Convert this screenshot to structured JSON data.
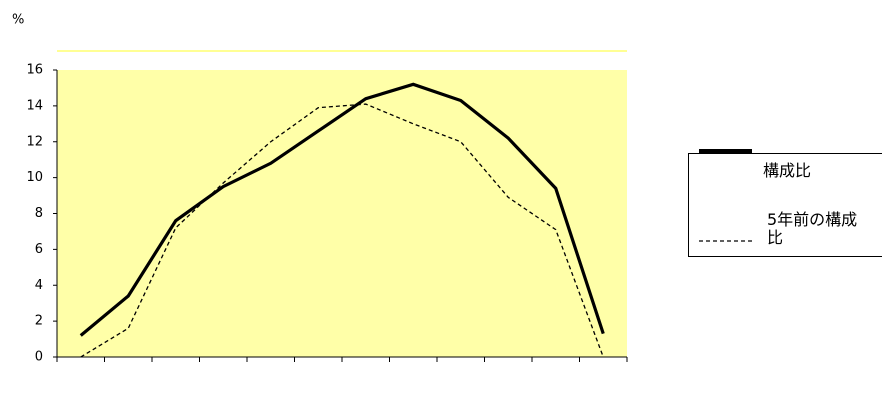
{
  "chart_data": {
    "type": "line",
    "y_unit": "%",
    "categories": [
      null,
      null,
      null,
      null,
      null,
      null,
      null,
      null,
      null,
      null,
      null,
      null
    ],
    "series": [
      {
        "name": "構成比",
        "color": "#000000",
        "dash": false,
        "values": [
          1.2,
          3.4,
          7.6,
          9.5,
          10.8,
          12.6,
          14.4,
          15.2,
          14.3,
          12.2,
          9.4,
          1.3
        ]
      },
      {
        "name": "5年前の構成比",
        "color": "#000000",
        "dash": true,
        "values": [
          0,
          1.6,
          7.2,
          9.7,
          12.0,
          13.9,
          14.1,
          13.0,
          12.0,
          8.9,
          7.1,
          0
        ]
      }
    ],
    "ylim": [
      0,
      16
    ],
    "yticks": [
      0,
      2,
      4,
      6,
      8,
      10,
      12,
      14,
      16
    ],
    "grid": false
  }
}
